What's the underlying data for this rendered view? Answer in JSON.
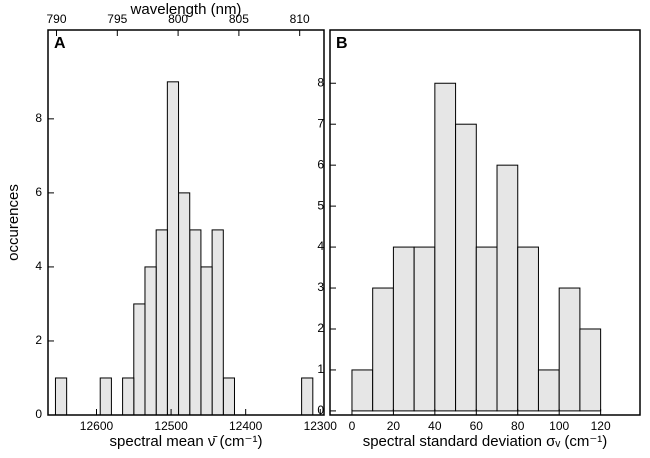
{
  "chart_data": [
    {
      "type": "histogram",
      "panel_label": "A",
      "xlabel": "spectral mean ν̄ (cm⁻¹)",
      "ylabel": "occurences",
      "x2label": "wavelength (nm)",
      "bins": [
        12310,
        12325,
        12340,
        12355,
        12370,
        12385,
        12400,
        12415,
        12430,
        12445,
        12460,
        12475,
        12490,
        12505,
        12520,
        12535,
        12550,
        12565,
        12580,
        12595,
        12610,
        12625,
        12640,
        12655
      ],
      "values": [
        1,
        0,
        0,
        0,
        0,
        0,
        0,
        1,
        5,
        4,
        5,
        6,
        9,
        5,
        4,
        3,
        1,
        0,
        1,
        0,
        0,
        0,
        1
      ],
      "color": "#e6e6e6",
      "xlim": [
        12665,
        12295
      ],
      "xticks": [
        12600,
        12500,
        12400,
        12300
      ],
      "ylim": [
        0,
        10.4
      ],
      "yticks": [
        0,
        2,
        4,
        6,
        8
      ],
      "x2lim": [
        789.3,
        812
      ],
      "x2ticks": [
        790,
        795,
        800,
        805,
        810
      ]
    },
    {
      "type": "histogram",
      "panel_label": "B",
      "xlabel": "spectral standard deviation σᵥ (cm⁻¹)",
      "bins": [
        0,
        10,
        20,
        30,
        40,
        50,
        60,
        70,
        80,
        90,
        100,
        110,
        120
      ],
      "values": [
        1,
        3,
        4,
        4,
        8,
        7,
        4,
        6,
        4,
        1,
        3,
        2
      ],
      "color": "#e6e6e6",
      "xlim": [
        -10.6,
        139
      ],
      "xticks": [
        0,
        20,
        40,
        60,
        80,
        100,
        120
      ],
      "ylim": [
        -0.1,
        9.3
      ],
      "yticks": [
        0,
        1,
        2,
        3,
        4,
        5,
        6,
        7,
        8
      ]
    }
  ]
}
